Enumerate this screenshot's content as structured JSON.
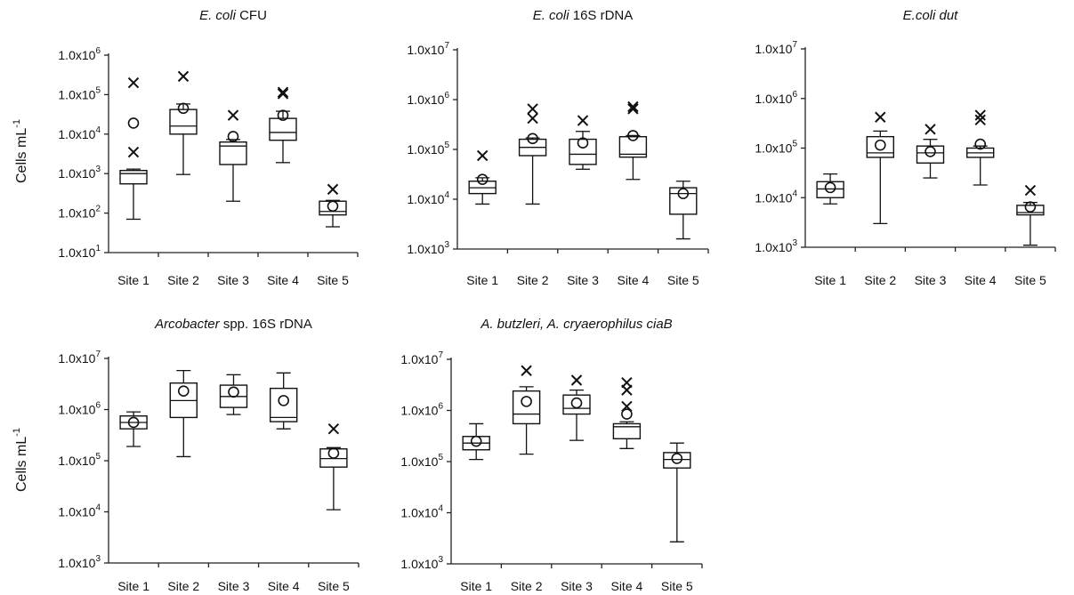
{
  "y_axis_label": "Cells mL",
  "y_axis_label_sup": "-1",
  "chart_data": [
    {
      "type": "box",
      "title_parts": [
        {
          "text": "E. coli",
          "italic": true
        },
        {
          "text": " CFU",
          "italic": false
        }
      ],
      "y_scale": "log",
      "ylim": [
        10,
        1000000
      ],
      "y_ticks": [
        10,
        100,
        1000,
        10000,
        100000,
        1000000
      ],
      "y_tick_labels": [
        [
          "1.0x10",
          "1"
        ],
        [
          "1.0x10",
          "2"
        ],
        [
          "1.0x10",
          "3"
        ],
        [
          "1.0x10",
          "4"
        ],
        [
          "1.0x10",
          "5"
        ],
        [
          "1.0x10",
          "6"
        ]
      ],
      "categories": [
        "Site 1",
        "Site 2",
        "Site 3",
        "Site 4",
        "Site 5"
      ],
      "boxes": [
        {
          "min": 70,
          "q1": 550,
          "median": 1000,
          "q3": 1200,
          "max": 1300,
          "mean": 19000,
          "outliers": [
            3500,
            200000
          ]
        },
        {
          "min": 950,
          "q1": 10000,
          "median": 16000,
          "q3": 42000,
          "max": 58000,
          "mean": 45000,
          "outliers": [
            290000
          ]
        },
        {
          "min": 200,
          "q1": 1700,
          "median": 5000,
          "q3": 6300,
          "max": 7300,
          "mean": 8700,
          "outliers": [
            30000
          ]
        },
        {
          "min": 1900,
          "q1": 7000,
          "median": 11000,
          "q3": 25000,
          "max": 38000,
          "mean": 30000,
          "outliers": [
            105000,
            115000
          ]
        },
        {
          "min": 45,
          "q1": 90,
          "median": 110,
          "q3": 200,
          "max": 210,
          "mean": 150,
          "outliers": [
            400
          ]
        }
      ]
    },
    {
      "type": "box",
      "title_parts": [
        {
          "text": "E. coli",
          "italic": true
        },
        {
          "text": " 16S rDNA",
          "italic": false
        }
      ],
      "y_scale": "log",
      "ylim": [
        1000,
        10000000
      ],
      "y_ticks": [
        1000,
        10000,
        100000,
        1000000,
        10000000
      ],
      "y_tick_labels": [
        [
          "1.0x10",
          "3"
        ],
        [
          "1.0x10",
          "4"
        ],
        [
          "1.0x10",
          "5"
        ],
        [
          "1.0x10",
          "6"
        ],
        [
          "1.0x10",
          "7"
        ]
      ],
      "categories": [
        "Site 1",
        "Site 2",
        "Site 3",
        "Site 4",
        "Site 5"
      ],
      "boxes": [
        {
          "min": 8000,
          "q1": 13000,
          "median": 17000,
          "q3": 23000,
          "max": 27000,
          "mean": 25000,
          "outliers": [
            75000
          ]
        },
        {
          "min": 8000,
          "q1": 75000,
          "median": 110000,
          "q3": 160000,
          "max": 170000,
          "mean": 165000,
          "outliers": [
            420000,
            650000
          ]
        },
        {
          "min": 40000,
          "q1": 50000,
          "median": 80000,
          "q3": 160000,
          "max": 230000,
          "mean": 135000,
          "outliers": [
            380000
          ]
        },
        {
          "min": 25000,
          "q1": 70000,
          "median": 80000,
          "q3": 180000,
          "max": 190000,
          "mean": 190000,
          "outliers": [
            650000,
            720000
          ]
        },
        {
          "min": 1600,
          "q1": 5000,
          "median": 13000,
          "q3": 17000,
          "max": 23000,
          "mean": 13000,
          "outliers": []
        }
      ]
    },
    {
      "type": "box",
      "title_parts": [
        {
          "text": "E.coli dut",
          "italic": true
        }
      ],
      "y_scale": "log",
      "ylim": [
        1000,
        10000000
      ],
      "y_ticks": [
        1000,
        10000,
        100000,
        1000000,
        10000000
      ],
      "y_tick_labels": [
        [
          "1.0x10",
          "3"
        ],
        [
          "1.0x10",
          "4"
        ],
        [
          "1.0x10",
          "5"
        ],
        [
          "1.0x10",
          "6"
        ],
        [
          "1.0x10",
          "7"
        ]
      ],
      "categories": [
        "Site 1",
        "Site 2",
        "Site 3",
        "Site 4",
        "Site 5"
      ],
      "boxes": [
        {
          "min": 7500,
          "q1": 10000,
          "median": 15000,
          "q3": 21000,
          "max": 30000,
          "mean": 16000,
          "outliers": []
        },
        {
          "min": 3000,
          "q1": 65000,
          "median": 80000,
          "q3": 170000,
          "max": 220000,
          "mean": 115000,
          "outliers": [
            420000
          ]
        },
        {
          "min": 25000,
          "q1": 50000,
          "median": 80000,
          "q3": 110000,
          "max": 150000,
          "mean": 85000,
          "outliers": [
            240000
          ]
        },
        {
          "min": 18000,
          "q1": 65000,
          "median": 80000,
          "q3": 100000,
          "max": 110000,
          "mean": 120000,
          "outliers": [
            370000,
            460000
          ]
        },
        {
          "min": 1100,
          "q1": 4500,
          "median": 5000,
          "q3": 7000,
          "max": 8000,
          "mean": 6500,
          "outliers": [
            14000
          ]
        }
      ]
    },
    {
      "type": "box",
      "title_parts": [
        {
          "text": "Arcobacter",
          "italic": true
        },
        {
          "text": " spp. 16S rDNA",
          "italic": false
        }
      ],
      "y_scale": "log",
      "ylim": [
        1000,
        10000000
      ],
      "y_ticks": [
        1000,
        10000,
        100000,
        1000000,
        10000000
      ],
      "y_tick_labels": [
        [
          "1.0x10",
          "3"
        ],
        [
          "1.0x10",
          "4"
        ],
        [
          "1.0x10",
          "5"
        ],
        [
          "1.0x10",
          "6"
        ],
        [
          "1.0x10",
          "7"
        ]
      ],
      "categories": [
        "Site 1",
        "Site 2",
        "Site 3",
        "Site 4",
        "Site 5"
      ],
      "boxes": [
        {
          "min": 190000,
          "q1": 420000,
          "median": 560000,
          "q3": 750000,
          "max": 900000,
          "mean": 560000,
          "outliers": []
        },
        {
          "min": 120000,
          "q1": 700000,
          "median": 1500000,
          "q3": 3300000,
          "max": 5800000,
          "mean": 2300000,
          "outliers": []
        },
        {
          "min": 800000,
          "q1": 1100000,
          "median": 1800000,
          "q3": 3000000,
          "max": 4800000,
          "mean": 2200000,
          "outliers": []
        },
        {
          "min": 420000,
          "q1": 580000,
          "median": 700000,
          "q3": 2600000,
          "max": 5200000,
          "mean": 1500000,
          "outliers": []
        },
        {
          "min": 11000,
          "q1": 75000,
          "median": 110000,
          "q3": 170000,
          "max": 180000,
          "mean": 140000,
          "outliers": [
            420000
          ]
        }
      ]
    },
    {
      "type": "box",
      "title_parts": [
        {
          "text": "A. butzleri, A. cryaerophilus ciaB",
          "italic": true
        }
      ],
      "y_scale": "log",
      "ylim": [
        1000,
        10000000
      ],
      "y_ticks": [
        1000,
        10000,
        100000,
        1000000,
        10000000
      ],
      "y_tick_labels": [
        [
          "1.0x10",
          "3"
        ],
        [
          "1.0x10",
          "4"
        ],
        [
          "1.0x10",
          "5"
        ],
        [
          "1.0x10",
          "6"
        ],
        [
          "1.0x10",
          "7"
        ]
      ],
      "categories": [
        "Site 1",
        "Site 2",
        "Site 3",
        "Site 4",
        "Site 5"
      ],
      "boxes": [
        {
          "min": 110000,
          "q1": 170000,
          "median": 230000,
          "q3": 310000,
          "max": 550000,
          "mean": 250000,
          "outliers": []
        },
        {
          "min": 140000,
          "q1": 550000,
          "median": 850000,
          "q3": 2400000,
          "max": 2900000,
          "mean": 1500000,
          "outliers": [
            6000000
          ]
        },
        {
          "min": 260000,
          "q1": 850000,
          "median": 1100000,
          "q3": 2000000,
          "max": 2500000,
          "mean": 1400000,
          "outliers": [
            3900000
          ]
        },
        {
          "min": 180000,
          "q1": 280000,
          "median": 480000,
          "q3": 550000,
          "max": 600000,
          "mean": 850000,
          "outliers": [
            1200000,
            2500000,
            3500000
          ]
        },
        {
          "min": 2700,
          "q1": 75000,
          "median": 110000,
          "q3": 150000,
          "max": 230000,
          "mean": 115000,
          "outliers": []
        }
      ]
    }
  ]
}
